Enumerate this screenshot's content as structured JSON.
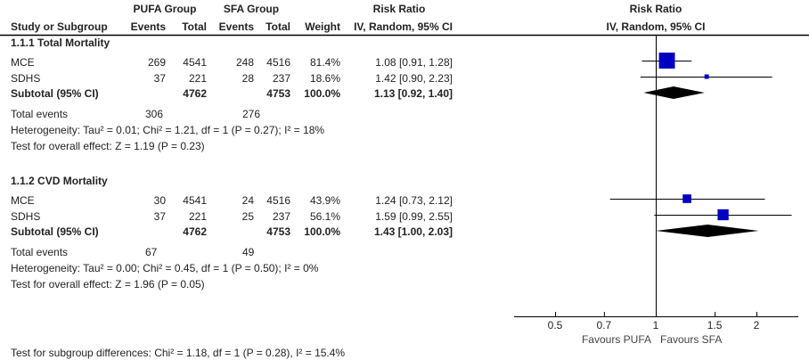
{
  "header": {
    "study_col": "Study or Subgroup",
    "group1": "PUFA Group",
    "group2": "SFA Group",
    "events": "Events",
    "total": "Total",
    "weight": "Weight",
    "effect_title": "Risk Ratio",
    "effect_method": "IV, Random, 95% CI",
    "plot_title": "Risk Ratio",
    "plot_method": "IV, Random, 95% CI"
  },
  "subgroups": [
    {
      "title": "1.1.1 Total Mortality",
      "studies": [
        {
          "name": "MCE",
          "e1": "269",
          "n1": "4541",
          "e2": "248",
          "n2": "4516",
          "weight": "81.4%",
          "rr_text": "1.08 [0.91, 1.28]",
          "rr": 1.08,
          "lo": 0.91,
          "hi": 1.28,
          "w": 81.4
        },
        {
          "name": "SDHS",
          "e1": "37",
          "n1": "221",
          "e2": "28",
          "n2": "237",
          "weight": "18.6%",
          "rr_text": "1.42 [0.90, 2.23]",
          "rr": 1.42,
          "lo": 0.9,
          "hi": 2.23,
          "w": 18.6
        }
      ],
      "subtotal": {
        "label": "Subtotal (95% CI)",
        "n1": "4762",
        "n2": "4753",
        "weight": "100.0%",
        "rr_text": "1.13 [0.92, 1.40]",
        "rr": 1.13,
        "lo": 0.92,
        "hi": 1.4
      },
      "total_events": {
        "label": "Total events",
        "e1": "306",
        "e2": "276"
      },
      "heterogeneity": "Heterogeneity: Tau² = 0.01; Chi² = 1.21, df = 1 (P = 0.27); I² = 18%",
      "overall": "Test for overall effect: Z = 1.19 (P = 0.23)"
    },
    {
      "title": "1.1.2 CVD Mortality",
      "studies": [
        {
          "name": "MCE",
          "e1": "30",
          "n1": "4541",
          "e2": "24",
          "n2": "4516",
          "weight": "43.9%",
          "rr_text": "1.24 [0.73, 2.12]",
          "rr": 1.24,
          "lo": 0.73,
          "hi": 2.12,
          "w": 43.9
        },
        {
          "name": "SDHS",
          "e1": "37",
          "n1": "221",
          "e2": "25",
          "n2": "237",
          "weight": "56.1%",
          "rr_text": "1.59 [0.99, 2.55]",
          "rr": 1.59,
          "lo": 0.99,
          "hi": 2.55,
          "w": 56.1
        }
      ],
      "subtotal": {
        "label": "Subtotal (95% CI)",
        "n1": "4762",
        "n2": "4753",
        "weight": "100.0%",
        "rr_text": "1.43 [1.00, 2.03]",
        "rr": 1.43,
        "lo": 1.0,
        "hi": 2.03
      },
      "total_events": {
        "label": "Total events",
        "e1": "67",
        "e2": "49"
      },
      "heterogeneity": "Heterogeneity: Tau² = 0.00; Chi² = 0.45, df = 1 (P = 0.50); I² = 0%",
      "overall": "Test for overall effect: Z = 1.96 (P = 0.05)"
    }
  ],
  "subgroup_test": "Test for subgroup differences: Chi² = 1.18, df = 1 (P = 0.28), I² = 15.4%",
  "chart_data": {
    "type": "forest",
    "x_scale": "log",
    "null_value": 1,
    "xticks": [
      0.5,
      0.7,
      1,
      1.5,
      2
    ],
    "xtick_labels": [
      "0.5",
      "0.7",
      "1",
      "1.5",
      "2"
    ],
    "favours_left": "Favours PUFA",
    "favours_right": "Favours SFA",
    "colors": {
      "study_marker": "#0000C0",
      "summary_diamond": "#000000",
      "lines": "#000000"
    }
  }
}
